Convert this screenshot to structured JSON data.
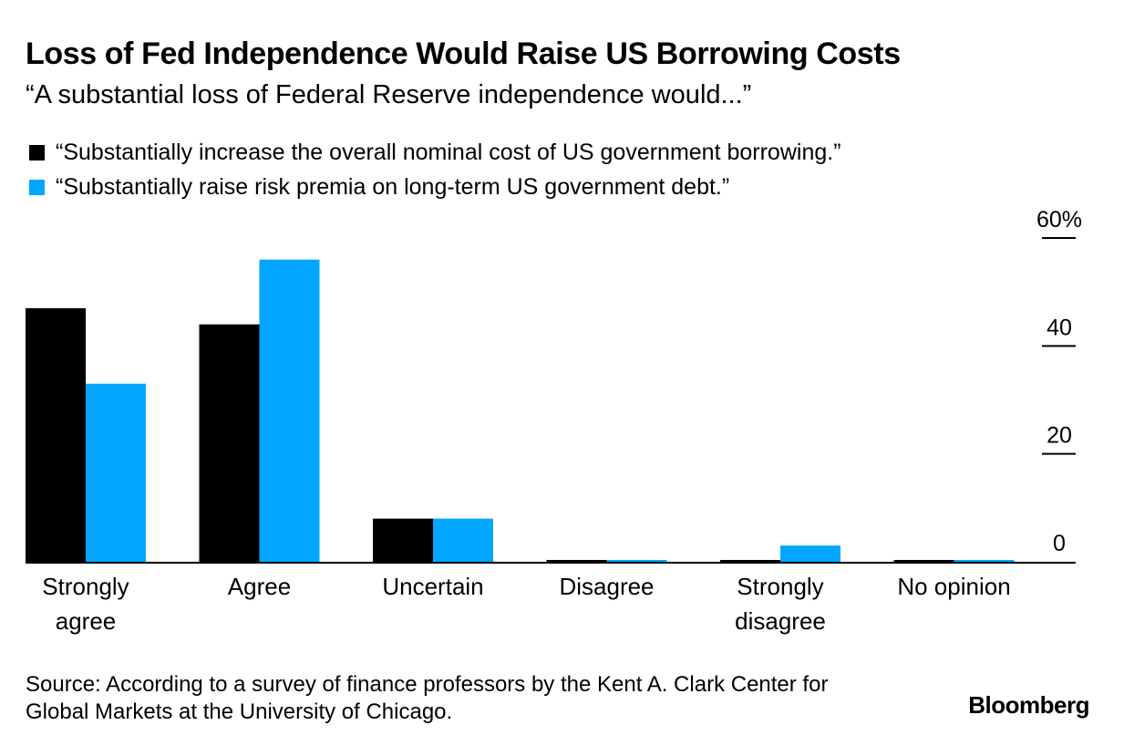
{
  "title": "Loss of Fed Independence Would Raise US Borrowing Costs",
  "subtitle": "“A substantial loss of Federal Reserve independence would...”",
  "source": "Source: According to a survey of finance professors by the Kent A. Clark Center for Global Markets at the University of Chicago.",
  "brand": "Bloomberg",
  "colors": {
    "series1": "#000000",
    "series2": "#00a6ff"
  },
  "chart_data": {
    "type": "bar",
    "categories": [
      "Strongly agree",
      "Agree",
      "Uncertain",
      "Disagree",
      "Strongly disagree",
      "No opinion"
    ],
    "series": [
      {
        "name": "“Substantially increase the overall nominal cost of US government borrowing.”",
        "values": [
          47,
          44,
          8,
          0,
          0,
          0
        ]
      },
      {
        "name": "“Substantially raise risk premia on long-term US government debt.”",
        "values": [
          33,
          56,
          8,
          0,
          3,
          0
        ]
      }
    ],
    "yticks": [
      "0",
      "20",
      "40",
      "60%"
    ],
    "ylim": [
      0,
      60
    ],
    "ylabel": "",
    "xlabel": "",
    "y_axis_position": "right",
    "legend_position": "top-left",
    "grid": false
  }
}
